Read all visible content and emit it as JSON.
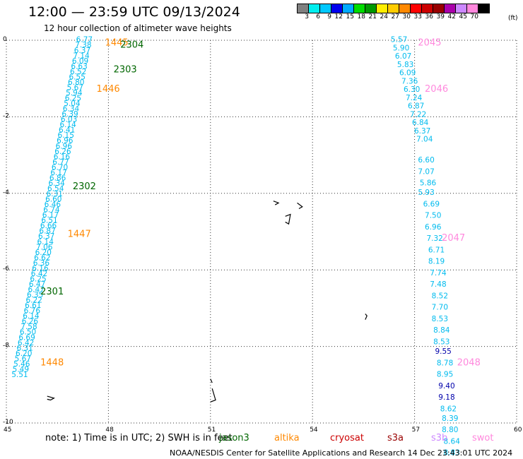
{
  "title": "12:00 — 23:59 UTC 09/13/2024",
  "subtitle": "12 hour collection of altimeter wave heights",
  "legend": {
    "colors": [
      "#808080",
      "#00eeee",
      "#00c8ff",
      "#0000ee",
      "#00aaff",
      "#00dd00",
      "#009900",
      "#ffee00",
      "#ffcc00",
      "#ff8800",
      "#ff0000",
      "#cc0000",
      "#990000",
      "#aa00aa",
      "#cc88ff",
      "#ff88dd",
      "#000000"
    ],
    "labels": [
      "3",
      "6",
      "9",
      "12",
      "15",
      "18",
      "21",
      "24",
      "27",
      "30",
      "33",
      "36",
      "39",
      "42",
      "45",
      "70"
    ],
    "unit": "(ft)"
  },
  "axes": {
    "x_ticks": [
      "45",
      "48",
      "51",
      "54",
      "57",
      "60"
    ],
    "y_ticks": [
      "0",
      "-2",
      "-4",
      "-6",
      "-8",
      "-10"
    ],
    "xlim": [
      45,
      60
    ],
    "ylim": [
      -10,
      0
    ]
  },
  "note": "note:  1) Time is in UTC; 2) SWH is in feet",
  "satellites": [
    {
      "name": "jason3",
      "color": "#006600"
    },
    {
      "name": "altika",
      "color": "#ff8800"
    },
    {
      "name": "cryosat",
      "color": "#cc0000"
    },
    {
      "name": "s3a",
      "color": "#990000"
    },
    {
      "name": "s3b",
      "color": "#cc88ff"
    },
    {
      "name": "swot",
      "color": "#ff88dd"
    }
  ],
  "credit": "NOAA/NESDIS Center for Satellite Applications and Research    14 Dec 23:43:01 UTC 2024",
  "pass_labels": [
    {
      "text": "1445",
      "lon": 47.9,
      "lat": -0.05,
      "color": "#ff8800"
    },
    {
      "text": "2304",
      "lon": 48.35,
      "lat": -0.1,
      "color": "#006600"
    },
    {
      "text": "2303",
      "lon": 48.15,
      "lat": -0.75,
      "color": "#006600"
    },
    {
      "text": "1446",
      "lon": 47.65,
      "lat": -1.25,
      "color": "#ff8800"
    },
    {
      "text": "2302",
      "lon": 46.95,
      "lat": -3.8,
      "color": "#006600"
    },
    {
      "text": "1447",
      "lon": 46.8,
      "lat": -5.05,
      "color": "#ff8800"
    },
    {
      "text": "2301",
      "lon": 46.0,
      "lat": -6.55,
      "color": "#006600"
    },
    {
      "text": "1448",
      "lon": 46.0,
      "lat": -8.4,
      "color": "#ff8800"
    },
    {
      "text": "2045",
      "lon": 57.1,
      "lat": -0.05,
      "color": "#ff88dd"
    },
    {
      "text": "2046",
      "lon": 57.3,
      "lat": -1.25,
      "color": "#ff88dd"
    },
    {
      "text": "2047",
      "lon": 57.8,
      "lat": -5.15,
      "color": "#ff88dd"
    },
    {
      "text": "2048",
      "lon": 58.25,
      "lat": -8.4,
      "color": "#ff88dd"
    }
  ],
  "tracks": [
    {
      "color": "#00bbee",
      "start": [
        47.05,
        -0.05
      ],
      "end": [
        45.15,
        -8.8
      ],
      "values": [
        "6.77",
        "7.38",
        "6.37",
        "7.14",
        "6.09",
        "6.63",
        "6.52",
        "6.55",
        "6.80",
        "5.67",
        "5.94",
        "6.25",
        "5.04",
        "6.34",
        "6.39",
        "6.03",
        "6.14",
        "6.41",
        "6.15",
        "6.96",
        "6.96",
        "6.26",
        "6.16",
        "6.77",
        "6.70",
        "6.17",
        "6.86",
        "6.34",
        "6.54",
        "6.31",
        "6.60",
        "6.46",
        "6.74",
        "6.17",
        "6.51",
        "6.66",
        "6.87",
        "6.37",
        "6.14",
        "7.06",
        "6.20",
        "6.62",
        "6.36",
        "6.16",
        "6.42",
        "6.25",
        "6.47",
        "6.47",
        "6.35",
        "6.22",
        "6.61",
        "6.76",
        "6.14",
        "6.26",
        "7.58",
        "6.50",
        "6.69",
        "6.42",
        "6.31",
        "6.20",
        "5.67",
        "5.46",
        "5.49",
        "5.51"
      ]
    },
    {
      "color": "#00bbee",
      "start": [
        56.3,
        -0.05
      ],
      "end": [
        57.05,
        -2.65
      ],
      "values": [
        "5.57",
        "5.90",
        "6.07",
        "5.83",
        "6.09",
        "7.36",
        "6.30",
        "7.24",
        "6.87",
        "7.22",
        "6.84",
        "6.37",
        "7.04"
      ]
    }
  ],
  "track_points": [
    {
      "v": "6.60",
      "lon": 57.1,
      "lat": -3.1,
      "color": "#00bbee"
    },
    {
      "v": "7.07",
      "lon": 57.1,
      "lat": -3.4,
      "color": "#00bbee"
    },
    {
      "v": "5.86",
      "lon": 57.15,
      "lat": -3.7,
      "color": "#00bbee"
    },
    {
      "v": "5.93",
      "lon": 57.1,
      "lat": -3.95,
      "color": "#00bbee"
    },
    {
      "v": "6.69",
      "lon": 57.25,
      "lat": -4.25,
      "color": "#00bbee"
    },
    {
      "v": "7.50",
      "lon": 57.3,
      "lat": -4.55,
      "color": "#00bbee"
    },
    {
      "v": "6.96",
      "lon": 57.3,
      "lat": -4.85,
      "color": "#00bbee"
    },
    {
      "v": "7.32",
      "lon": 57.35,
      "lat": -5.15,
      "color": "#00bbee"
    },
    {
      "v": "6.71",
      "lon": 57.4,
      "lat": -5.45,
      "color": "#00bbee"
    },
    {
      "v": "8.19",
      "lon": 57.4,
      "lat": -5.75,
      "color": "#00bbee"
    },
    {
      "v": "7.74",
      "lon": 57.45,
      "lat": -6.05,
      "color": "#00bbee"
    },
    {
      "v": "7.48",
      "lon": 57.45,
      "lat": -6.35,
      "color": "#00bbee"
    },
    {
      "v": "8.52",
      "lon": 57.5,
      "lat": -6.65,
      "color": "#00bbee"
    },
    {
      "v": "7.70",
      "lon": 57.5,
      "lat": -6.95,
      "color": "#00bbee"
    },
    {
      "v": "8.53",
      "lon": 57.5,
      "lat": -7.25,
      "color": "#00bbee"
    },
    {
      "v": "8.84",
      "lon": 57.55,
      "lat": -7.55,
      "color": "#00bbee"
    },
    {
      "v": "8.53",
      "lon": 57.55,
      "lat": -7.85,
      "color": "#00bbee"
    },
    {
      "v": "9.55",
      "lon": 57.6,
      "lat": -8.1,
      "color": "#0000aa"
    },
    {
      "v": "8.78",
      "lon": 57.65,
      "lat": -8.4,
      "color": "#00bbee"
    },
    {
      "v": "8.95",
      "lon": 57.65,
      "lat": -8.7,
      "color": "#00bbee"
    },
    {
      "v": "9.40",
      "lon": 57.7,
      "lat": -9.0,
      "color": "#0000aa"
    },
    {
      "v": "9.18",
      "lon": 57.7,
      "lat": -9.3,
      "color": "#0000aa"
    },
    {
      "v": "8.62",
      "lon": 57.75,
      "lat": -9.6,
      "color": "#00bbee"
    },
    {
      "v": "8.39",
      "lon": 57.8,
      "lat": -9.85,
      "color": "#00bbee"
    },
    {
      "v": "8.80",
      "lon": 57.8,
      "lat": -10.15,
      "color": "#00bbee"
    },
    {
      "v": "8.64",
      "lon": 57.85,
      "lat": -10.45,
      "color": "#00bbee"
    },
    {
      "v": "8.83",
      "lon": 57.85,
      "lat": -10.75,
      "color": "#00bbee"
    }
  ]
}
